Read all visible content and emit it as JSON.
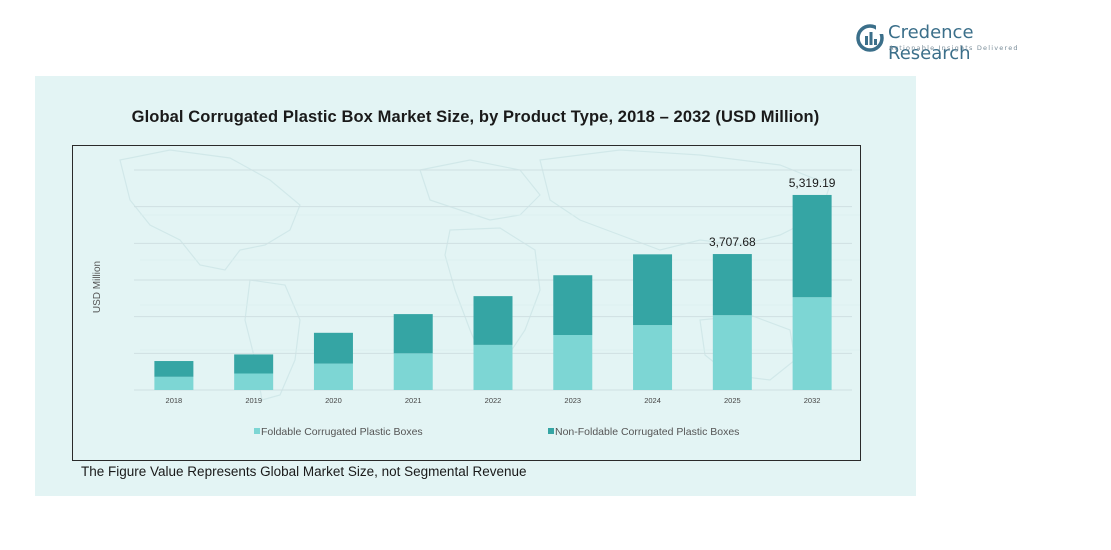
{
  "brand": {
    "name": "Credence Research",
    "tagline": "Actionable Insights Delivered",
    "logo_icon": "credence-logo-icon"
  },
  "footnote": "The Figure Value Represents Global Market Size, not Segmental Revenue",
  "colors": {
    "panel_bg": "#e3f4f4",
    "foldable": "#7dd6d4",
    "non_foldable": "#35a5a4",
    "map": "#c9e2e4"
  },
  "chart_data": {
    "type": "bar",
    "stacked": true,
    "title": "Global Corrugated Plastic Box Market Size, by Product Type, 2018 – 2032 (USD Million)",
    "xlabel": "",
    "ylabel": "USD Million",
    "ylim": [
      0,
      6000
    ],
    "grid": true,
    "legend_position": "bottom",
    "categories": [
      "2018",
      "2019",
      "2020",
      "2021",
      "2022",
      "2023",
      "2024",
      "2025",
      "2032"
    ],
    "series": [
      {
        "name": "Foldable Corrugated Plastic Boxes",
        "color": "#7dd6d4",
        "values": [
          360,
          450,
          720,
          1000,
          1230,
          1500,
          1770,
          2040,
          2530
        ]
      },
      {
        "name": "Non-Foldable Corrugated Plastic Boxes",
        "color": "#35a5a4",
        "values": [
          430,
          520,
          840,
          1070,
          1330,
          1630,
          1930,
          1667.68,
          2789.19
        ]
      }
    ],
    "data_labels": [
      {
        "category": "2025",
        "text": "3,707.68"
      },
      {
        "category": "2032",
        "text": "5,319.19"
      }
    ]
  }
}
